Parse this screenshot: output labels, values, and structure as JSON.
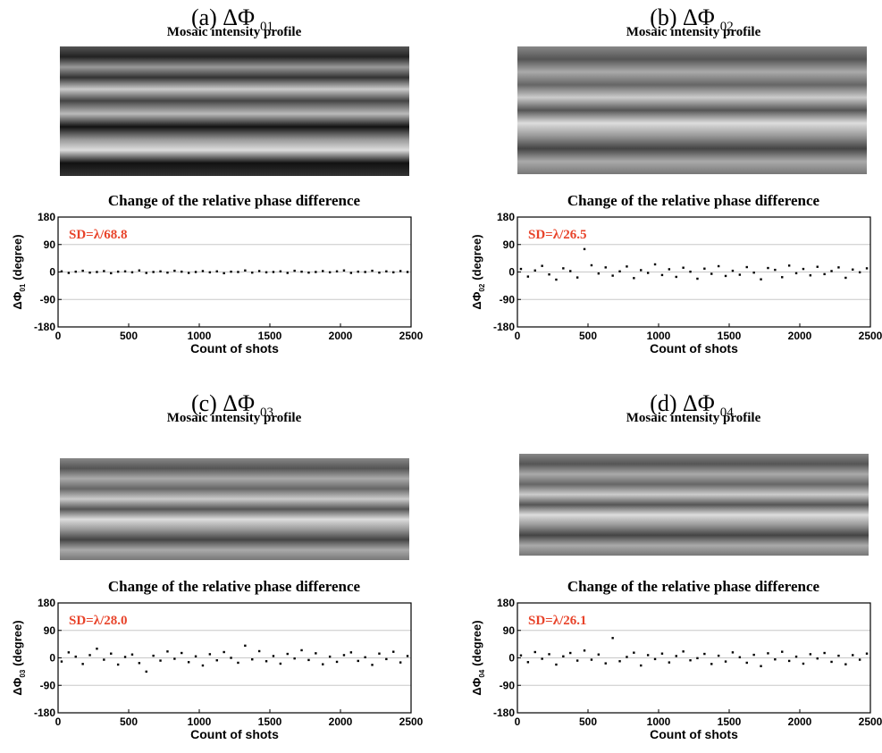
{
  "chart_data": [
    {
      "type": "scatter",
      "title": "(a) ΔΦ",
      "title_sub": "01",
      "image_title": "Mosaic intensity profile",
      "plot_title": "Change of the relative phase difference",
      "annotation": "SD=λ/68.8",
      "ylabel": "ΔΦ",
      "ylabel_sub": "01",
      "ylabel_unit": "(degree)",
      "xlabel": "Count of shots",
      "xlim": [
        0,
        2500
      ],
      "xticks": [
        0,
        500,
        1000,
        1500,
        2000,
        2500
      ],
      "ylim": [
        -180,
        180
      ],
      "yticks": [
        -180,
        -90,
        0,
        90,
        180
      ],
      "grid": true,
      "color": "#000000",
      "x": [
        25,
        75,
        125,
        175,
        225,
        275,
        325,
        375,
        425,
        475,
        525,
        575,
        625,
        675,
        725,
        775,
        825,
        875,
        925,
        975,
        1025,
        1075,
        1125,
        1175,
        1225,
        1275,
        1325,
        1375,
        1425,
        1475,
        1525,
        1575,
        1625,
        1675,
        1725,
        1775,
        1825,
        1875,
        1925,
        1975,
        2025,
        2075,
        2125,
        2175,
        2225,
        2275,
        2325,
        2375,
        2425,
        2475
      ],
      "values": [
        2,
        -3,
        1,
        4,
        -2,
        0,
        3,
        -4,
        1,
        2,
        -1,
        5,
        -3,
        0,
        2,
        -2,
        4,
        1,
        -3,
        0,
        3,
        -1,
        2,
        -4,
        1,
        0,
        5,
        -2,
        3,
        -1,
        0,
        2,
        -3,
        4,
        1,
        -2,
        0,
        3,
        -1,
        2,
        5,
        -3,
        1,
        0,
        4,
        -2,
        2,
        -1,
        3,
        0
      ]
    },
    {
      "type": "scatter",
      "title": "(b) ΔΦ",
      "title_sub": "02",
      "image_title": "Mosaic intensity profile",
      "plot_title": "Change of the relative phase difference",
      "annotation": "SD=λ/26.5",
      "ylabel": "ΔΦ",
      "ylabel_sub": "02",
      "ylabel_unit": "(degree)",
      "xlabel": "Count of shots",
      "xlim": [
        0,
        2500
      ],
      "xticks": [
        0,
        500,
        1000,
        1500,
        2000,
        2500
      ],
      "ylim": [
        -180,
        180
      ],
      "yticks": [
        -180,
        -90,
        0,
        90,
        180
      ],
      "grid": true,
      "color": "#000000",
      "x": [
        25,
        75,
        125,
        175,
        225,
        275,
        325,
        375,
        425,
        475,
        525,
        575,
        625,
        675,
        725,
        775,
        825,
        875,
        925,
        975,
        1025,
        1075,
        1125,
        1175,
        1225,
        1275,
        1325,
        1375,
        1425,
        1475,
        1525,
        1575,
        1625,
        1675,
        1725,
        1775,
        1825,
        1875,
        1925,
        1975,
        2025,
        2075,
        2125,
        2175,
        2225,
        2275,
        2325,
        2375,
        2425,
        2475
      ],
      "values": [
        10,
        -15,
        5,
        20,
        -8,
        -25,
        12,
        3,
        -18,
        75,
        22,
        -5,
        15,
        -12,
        2,
        18,
        -20,
        6,
        -3,
        25,
        -10,
        9,
        -16,
        14,
        1,
        -22,
        11,
        -6,
        19,
        -13,
        4,
        -9,
        16,
        -2,
        -24,
        13,
        7,
        -17,
        21,
        -4,
        10,
        -11,
        17,
        -7,
        3,
        15,
        -19,
        8,
        -1,
        12
      ]
    },
    {
      "type": "scatter",
      "title": "(c) ΔΦ",
      "title_sub": "03",
      "image_title": "Mosaic intensity profile",
      "plot_title": "Change of the relative phase difference",
      "annotation": "SD=λ/28.0",
      "ylabel": "ΔΦ",
      "ylabel_sub": "03",
      "ylabel_unit": "(degree)",
      "xlabel": "Count of shots",
      "xlim": [
        0,
        2500
      ],
      "xticks": [
        0,
        500,
        1000,
        1500,
        2000,
        2500
      ],
      "ylim": [
        -180,
        180
      ],
      "yticks": [
        -180,
        -90,
        0,
        90,
        180
      ],
      "grid": true,
      "color": "#000000",
      "x": [
        25,
        75,
        125,
        175,
        225,
        275,
        325,
        375,
        425,
        475,
        525,
        575,
        625,
        675,
        725,
        775,
        825,
        875,
        925,
        975,
        1025,
        1075,
        1125,
        1175,
        1225,
        1275,
        1325,
        1375,
        1425,
        1475,
        1525,
        1575,
        1625,
        1675,
        1725,
        1775,
        1825,
        1875,
        1925,
        1975,
        2025,
        2075,
        2125,
        2175,
        2225,
        2275,
        2325,
        2375,
        2425,
        2475
      ],
      "values": [
        -12,
        18,
        4,
        -20,
        9,
        30,
        -6,
        14,
        -22,
        3,
        11,
        -17,
        -45,
        7,
        -9,
        21,
        -3,
        16,
        -14,
        5,
        -25,
        12,
        -8,
        19,
        0,
        -16,
        40,
        -5,
        22,
        -11,
        6,
        -19,
        13,
        -2,
        25,
        -7,
        15,
        -21,
        4,
        -13,
        9,
        18,
        -10,
        2,
        -23,
        14,
        -4,
        20,
        -15,
        6
      ]
    },
    {
      "type": "scatter",
      "title": "(d) ΔΦ",
      "title_sub": "04",
      "image_title": "Mosaic intensity profile",
      "plot_title": "Change of the relative phase difference",
      "annotation": "SD=λ/26.1",
      "ylabel": "ΔΦ",
      "ylabel_sub": "04",
      "ylabel_unit": "(degree)",
      "xlabel": "Count of shots",
      "xlim": [
        0,
        2500
      ],
      "xticks": [
        0,
        500,
        1000,
        1500,
        2000,
        2500
      ],
      "ylim": [
        -180,
        180
      ],
      "yticks": [
        -180,
        -90,
        0,
        90,
        180
      ],
      "grid": true,
      "color": "#000000",
      "x": [
        25,
        75,
        125,
        175,
        225,
        275,
        325,
        375,
        425,
        475,
        525,
        575,
        625,
        675,
        725,
        775,
        825,
        875,
        925,
        975,
        1025,
        1075,
        1125,
        1175,
        1225,
        1275,
        1325,
        1375,
        1425,
        1475,
        1525,
        1575,
        1625,
        1675,
        1725,
        1775,
        1825,
        1875,
        1925,
        1975,
        2025,
        2075,
        2125,
        2175,
        2225,
        2275,
        2325,
        2375,
        2425,
        2475
      ],
      "values": [
        8,
        -14,
        19,
        -3,
        12,
        -22,
        5,
        16,
        -9,
        24,
        -6,
        11,
        -18,
        65,
        -11,
        3,
        17,
        -25,
        9,
        -4,
        14,
        -15,
        6,
        21,
        -8,
        -1,
        13,
        -20,
        7,
        -12,
        18,
        2,
        -16,
        10,
        -27,
        15,
        -5,
        20,
        -10,
        4,
        -19,
        12,
        -2,
        16,
        -13,
        7,
        -21,
        9,
        -6,
        14
      ]
    }
  ]
}
